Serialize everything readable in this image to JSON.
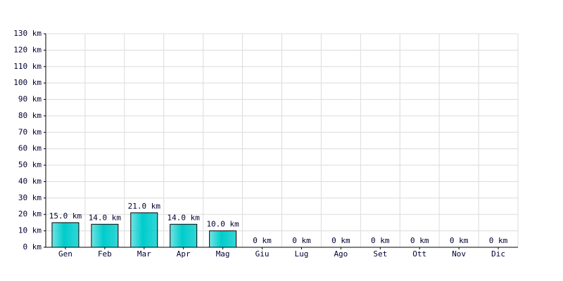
{
  "chart_data": {
    "type": "bar",
    "categories": [
      "Gen",
      "Feb",
      "Mar",
      "Apr",
      "Mag",
      "Giu",
      "Lug",
      "Ago",
      "Set",
      "Ott",
      "Nov",
      "Dic"
    ],
    "values": [
      15,
      14,
      21,
      14,
      10,
      0,
      0,
      0,
      0,
      0,
      0,
      0
    ],
    "value_labels": [
      "15.0 km",
      "14.0 km",
      "21.0 km",
      "14.0 km",
      "10.0 km",
      "0 km",
      "0 km",
      "0 km",
      "0 km",
      "0 km",
      "0 km",
      "0 km"
    ],
    "color": "#00cccc",
    "ylim": [
      0,
      130
    ],
    "yticks": [
      {
        "value": 0,
        "label": "0 km"
      },
      {
        "value": 10,
        "label": "10 km"
      },
      {
        "value": 20,
        "label": "20 km"
      },
      {
        "value": 30,
        "label": "30 km"
      },
      {
        "value": 40,
        "label": "40 km"
      },
      {
        "value": 50,
        "label": "50 km"
      },
      {
        "value": 60,
        "label": "60 km"
      },
      {
        "value": 70,
        "label": "70 km"
      },
      {
        "value": 80,
        "label": "80 km"
      },
      {
        "value": 90,
        "label": "90 km"
      },
      {
        "value": 100,
        "label": "100 km"
      },
      {
        "value": 110,
        "label": "110 km"
      },
      {
        "value": 120,
        "label": "120 km"
      },
      {
        "value": 130,
        "label": "130 km"
      }
    ],
    "grid": true
  }
}
